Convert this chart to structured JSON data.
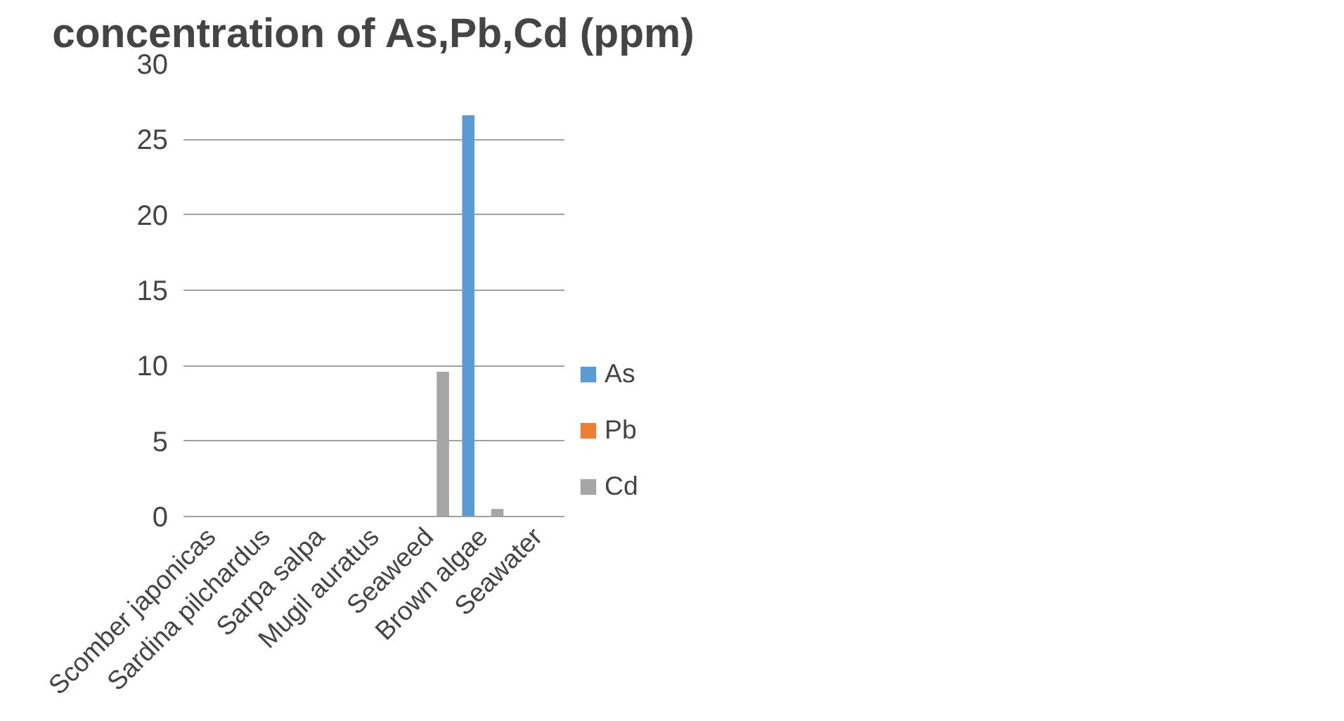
{
  "chart_data": {
    "type": "bar",
    "title": "concentration of As,Pb,Cd (ppm)",
    "categories": [
      "Scomber japonicas",
      "Sardina pilchardus",
      "Sarpa salpa",
      "Mugil auratus",
      "Seaweed",
      "Brown algae",
      "Seawater"
    ],
    "series": [
      {
        "name": "As",
        "color": "#5b9bd5",
        "values": [
          0,
          0,
          0,
          0,
          0,
          26.6,
          0
        ]
      },
      {
        "name": "Pb",
        "color": "#ed7d31",
        "values": [
          0,
          0,
          0,
          0,
          0,
          0,
          0
        ]
      },
      {
        "name": "Cd",
        "color": "#a5a5a5",
        "values": [
          0,
          0,
          0,
          0,
          9.6,
          0.5,
          0
        ]
      }
    ],
    "ylim": [
      0,
      30
    ],
    "yticks": [
      0,
      5,
      10,
      15,
      20,
      25,
      30
    ],
    "grid": "y",
    "legend": "right"
  }
}
